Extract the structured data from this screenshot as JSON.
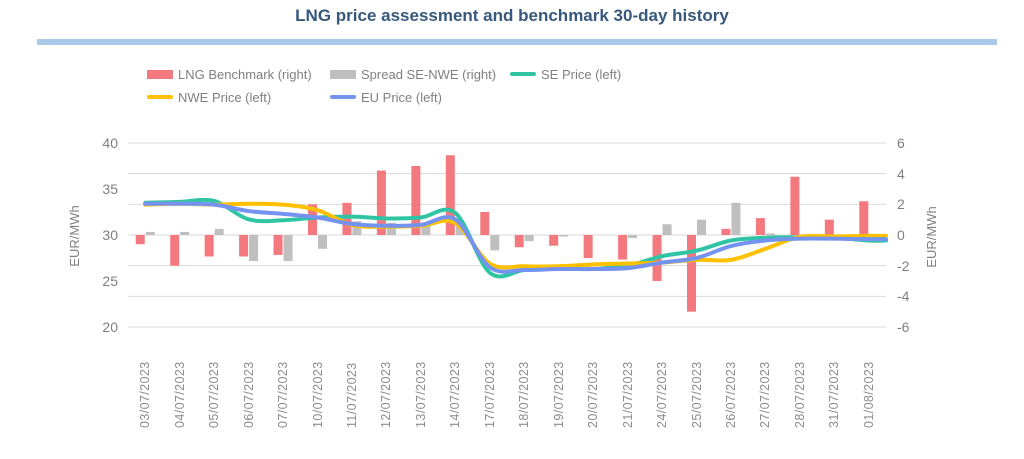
{
  "title": {
    "text": "LNG price assessment and benchmark 30-day history"
  },
  "legend": {
    "items": [
      {
        "label": "LNG Benchmark (right)",
        "swatch": "bar",
        "color": "#F4797E"
      },
      {
        "label": "Spread SE-NWE (right)",
        "swatch": "bar",
        "color": "#BFBFBF"
      },
      {
        "label": "SE Price (left)",
        "swatch": "line",
        "color": "#2FC5A4"
      },
      {
        "label": "NWE Price (left)",
        "swatch": "line",
        "color": "#FFC000"
      },
      {
        "label": "EU Price (left)",
        "swatch": "line",
        "color": "#7493F1"
      }
    ]
  },
  "left_axis": {
    "label": "EUR/MWh",
    "ticks": [
      40,
      35,
      30,
      25,
      20
    ],
    "min": 20,
    "max": 40
  },
  "right_axis": {
    "label": "EUR/MWh",
    "ticks": [
      6,
      4,
      2,
      0,
      -2,
      -4,
      -6
    ],
    "min": -6,
    "max": 6
  },
  "chart_data": {
    "type": "combo (bar + smooth line), dual y-axes",
    "title": "LNG price assessment and benchmark 30-day history",
    "categories": [
      "03/07/2023",
      "04/07/2023",
      "05/07/2023",
      "06/07/2023",
      "07/07/2023",
      "10/07/2023",
      "11/07/2023",
      "12/07/2023",
      "13/07/2023",
      "14/07/2023",
      "17/07/2023",
      "18/07/2023",
      "19/07/2023",
      "20/07/2023",
      "21/07/2023",
      "24/07/2023",
      "25/07/2023",
      "26/07/2023",
      "27/07/2023",
      "28/07/2023",
      "31/07/2023",
      "01/08/2023"
    ],
    "series": [
      {
        "name": "LNG Benchmark (right)",
        "type": "bar",
        "axis": "right",
        "color": "#F4797E",
        "values": [
          -0.6,
          -2.0,
          -1.4,
          -1.4,
          -1.3,
          2.0,
          2.1,
          4.2,
          4.5,
          5.2,
          1.5,
          -0.8,
          -0.7,
          -1.5,
          -1.6,
          -3.0,
          -5.0,
          0.4,
          1.1,
          3.8,
          1.0,
          2.2
        ]
      },
      {
        "name": "Spread SE-NWE (right)",
        "type": "bar",
        "axis": "right",
        "color": "#BFBFBF",
        "values": [
          0.2,
          0.2,
          0.4,
          -1.7,
          -1.7,
          -0.9,
          0.9,
          0.8,
          0.8,
          0.9,
          -1.0,
          -0.4,
          -0.1,
          0.0,
          -0.2,
          0.7,
          1.0,
          2.1,
          0.1,
          0.0,
          0.0,
          -0.5
        ]
      },
      {
        "name": "SE Price (left)",
        "type": "line",
        "axis": "left",
        "color": "#2FC5A4",
        "values": [
          33.5,
          33.6,
          33.7,
          31.7,
          31.6,
          31.9,
          32.0,
          31.8,
          31.9,
          32.4,
          25.9,
          26.2,
          26.5,
          26.8,
          26.7,
          27.7,
          28.3,
          29.4,
          29.7,
          29.75,
          29.7,
          29.4
        ]
      },
      {
        "name": "NWE Price (left)",
        "type": "line",
        "axis": "left",
        "color": "#FFC000",
        "values": [
          33.3,
          33.4,
          33.3,
          33.4,
          33.3,
          32.7,
          31.1,
          30.9,
          31.0,
          31.3,
          26.9,
          26.6,
          26.6,
          26.8,
          26.9,
          27.0,
          27.3,
          27.3,
          28.5,
          29.8,
          29.85,
          29.9
        ]
      },
      {
        "name": "EU Price (left)",
        "type": "line",
        "axis": "left",
        "color": "#7493F1",
        "values": [
          33.4,
          33.4,
          33.3,
          32.6,
          32.3,
          31.9,
          31.2,
          31.0,
          31.1,
          31.7,
          26.5,
          26.2,
          26.3,
          26.3,
          26.4,
          27.0,
          27.5,
          28.8,
          29.4,
          29.6,
          29.6,
          29.55
        ]
      }
    ],
    "left_ylabel": "EUR/MWh",
    "right_ylabel": "EUR/MWh",
    "left_ylim": [
      20,
      40
    ],
    "right_ylim": [
      -6,
      6
    ],
    "grid": "horizontal gridlines at every 2 units of the right axis",
    "legend_position": "top"
  },
  "styles": {
    "title_color": "#35587C",
    "title_rule_color": "#A9CBE9",
    "axis_text_color": "#7F7F7F",
    "gridline_color": "#D9D9D9",
    "background": "#FFFFFF"
  }
}
